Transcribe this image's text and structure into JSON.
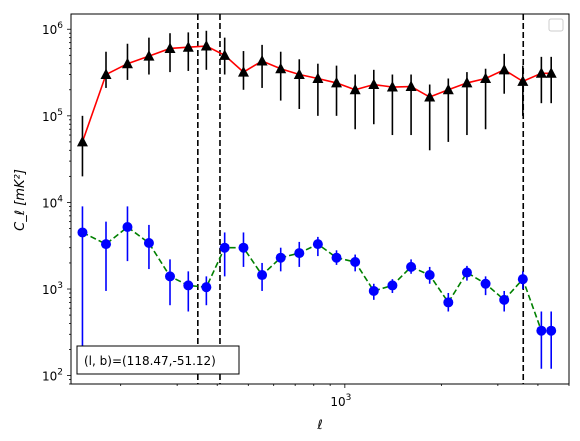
{
  "chart_data": {
    "type": "scatter",
    "xlabel": "ℓ",
    "ylabel": "C_ℓ  [mK²]",
    "x_scale": "log",
    "y_scale": "log",
    "xlim": [
      140,
      5000
    ],
    "ylim": [
      80,
      1500000
    ],
    "grid": false,
    "legend": {
      "position": "top-right",
      "entries": []
    },
    "x_tick_labels": [
      {
        "value": 1000,
        "base": "10",
        "exp": "3"
      }
    ],
    "y_tick_labels": [
      {
        "value": 100,
        "base": "10",
        "exp": "2"
      },
      {
        "value": 1000,
        "base": "10",
        "exp": "3"
      },
      {
        "value": 10000,
        "base": "10",
        "exp": "4"
      },
      {
        "value": 100000,
        "base": "10",
        "exp": "5"
      },
      {
        "value": 1000000,
        "base": "10",
        "exp": "6"
      }
    ],
    "vlines": [
      348,
      408,
      3600
    ],
    "annotation": {
      "text": "(l, b)=(118.47,-51.12)",
      "position": "bottom-left"
    },
    "series": [
      {
        "color": "#ff0000",
        "marker_color": "#000000",
        "marker": "triangle",
        "linestyle": "solid",
        "x": [
          152,
          180,
          210,
          245,
          285,
          325,
          370,
          422,
          483,
          552,
          631,
          721,
          824,
          942,
          1077,
          1231,
          1407,
          1609,
          1839,
          2102,
          2403,
          2747,
          3140,
          3589,
          4100,
          4400
        ],
        "y": [
          50000,
          300000,
          400000,
          490000,
          600000,
          620000,
          640000,
          500000,
          320000,
          430000,
          350000,
          300000,
          270000,
          240000,
          200000,
          230000,
          215000,
          218000,
          165000,
          200000,
          240000,
          270000,
          340000,
          250000,
          310000,
          310000
        ],
        "yerr_low": [
          20000,
          210000,
          260000,
          300000,
          320000,
          330000,
          340000,
          300000,
          200000,
          210000,
          150000,
          120000,
          100000,
          100000,
          70000,
          80000,
          60000,
          60000,
          40000,
          50000,
          60000,
          70000,
          180000,
          100000,
          140000,
          140000
        ],
        "yerr_high": [
          100000,
          550000,
          680000,
          800000,
          900000,
          920000,
          960000,
          800000,
          560000,
          660000,
          550000,
          450000,
          400000,
          380000,
          300000,
          340000,
          300000,
          300000,
          230000,
          270000,
          320000,
          350000,
          520000,
          380000,
          480000,
          480000
        ]
      },
      {
        "color": "#008000",
        "marker_color": "#0000ff",
        "marker": "circle",
        "linestyle": "dashed",
        "x": [
          152,
          180,
          210,
          245,
          285,
          325,
          370,
          422,
          483,
          552,
          631,
          721,
          824,
          942,
          1077,
          1231,
          1407,
          1609,
          1839,
          2102,
          2403,
          2747,
          3140,
          3589,
          4100,
          4400
        ],
        "y": [
          4500,
          3300,
          5200,
          3400,
          1400,
          1100,
          1050,
          3000,
          3000,
          1450,
          2300,
          2600,
          3300,
          2300,
          2050,
          950,
          1100,
          1800,
          1450,
          700,
          1550,
          1150,
          750,
          1300,
          330,
          330
        ],
        "yerr_low": [
          150,
          950,
          2100,
          1700,
          650,
          550,
          650,
          1400,
          1800,
          950,
          1600,
          1800,
          2400,
          1900,
          1600,
          750,
          900,
          1500,
          1150,
          550,
          1250,
          850,
          550,
          1000,
          120,
          120
        ],
        "yerr_high": [
          9000,
          6000,
          9000,
          5500,
          2200,
          1600,
          1400,
          4500,
          4500,
          2000,
          3000,
          3500,
          4000,
          2800,
          2500,
          1150,
          1300,
          2200,
          1800,
          900,
          1850,
          1400,
          950,
          1600,
          550,
          550
        ]
      }
    ]
  }
}
